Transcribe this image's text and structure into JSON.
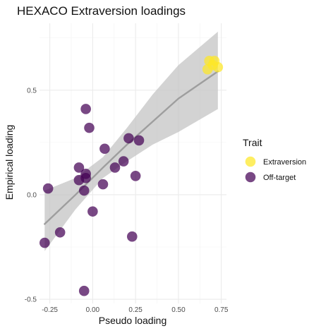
{
  "chart_data": {
    "type": "scatter",
    "title": "HEXACO Extraversion loadings",
    "xlabel": "Pseudo loading",
    "ylabel": "Empirical loading",
    "xlim": [
      -0.31,
      0.78
    ],
    "ylim": [
      -0.52,
      0.82
    ],
    "xticks": [
      -0.25,
      0,
      0.25,
      0.5,
      0.75
    ],
    "xtick_labels": [
      "-0.25",
      "0.00",
      "0.25",
      "0.50",
      "0.75"
    ],
    "yticks": [
      -0.5,
      0,
      0.5
    ],
    "ytick_labels": [
      "-0.5",
      "0.0",
      "0.5"
    ],
    "grid": true,
    "legend_title": "Trait",
    "legend_position": "right",
    "series": [
      {
        "name": "Extraversion",
        "color": "#FDE725",
        "points": [
          {
            "x": 0.68,
            "y": 0.64
          },
          {
            "x": 0.71,
            "y": 0.64
          },
          {
            "x": 0.7,
            "y": 0.62
          },
          {
            "x": 0.73,
            "y": 0.61
          },
          {
            "x": 0.67,
            "y": 0.6
          }
        ]
      },
      {
        "name": "Off-target",
        "color": "#440154",
        "points": [
          {
            "x": -0.04,
            "y": 0.41
          },
          {
            "x": -0.02,
            "y": 0.32
          },
          {
            "x": 0.21,
            "y": 0.27
          },
          {
            "x": 0.27,
            "y": 0.26
          },
          {
            "x": 0.07,
            "y": 0.22
          },
          {
            "x": 0.18,
            "y": 0.16
          },
          {
            "x": 0.13,
            "y": 0.13
          },
          {
            "x": -0.08,
            "y": 0.13
          },
          {
            "x": -0.04,
            "y": 0.1
          },
          {
            "x": 0.25,
            "y": 0.09
          },
          {
            "x": -0.04,
            "y": 0.08
          },
          {
            "x": -0.08,
            "y": 0.07
          },
          {
            "x": 0.06,
            "y": 0.05
          },
          {
            "x": -0.26,
            "y": 0.03
          },
          {
            "x": -0.05,
            "y": 0.02
          },
          {
            "x": 0.0,
            "y": -0.08
          },
          {
            "x": -0.19,
            "y": -0.18
          },
          {
            "x": 0.23,
            "y": -0.2
          },
          {
            "x": -0.28,
            "y": -0.23
          },
          {
            "x": -0.05,
            "y": -0.46
          }
        ]
      }
    ],
    "trend_line": {
      "color": "#9e9e9e",
      "band_color": "#c4c4c4",
      "points": [
        {
          "x": -0.28,
          "y": -0.14,
          "lower": -0.27,
          "upper": 0.02
        },
        {
          "x": -0.1,
          "y": 0.0,
          "lower": -0.07,
          "upper": 0.08
        },
        {
          "x": 0.06,
          "y": 0.13,
          "lower": 0.08,
          "upper": 0.18
        },
        {
          "x": 0.2,
          "y": 0.24,
          "lower": 0.16,
          "upper": 0.32
        },
        {
          "x": 0.35,
          "y": 0.35,
          "lower": 0.24,
          "upper": 0.48
        },
        {
          "x": 0.5,
          "y": 0.46,
          "lower": 0.3,
          "upper": 0.62
        },
        {
          "x": 0.73,
          "y": 0.59,
          "lower": 0.41,
          "upper": 0.78
        }
      ]
    }
  }
}
